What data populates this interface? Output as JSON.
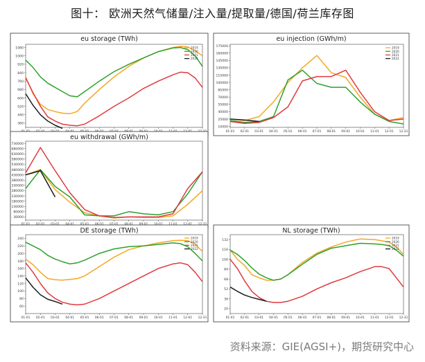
{
  "page": {
    "title": "图十：  欧洲天然气储量/注入量/提取量/德国/荷兰库存图",
    "source": "资料来源：GIE(AGSI+)，期货研究中心"
  },
  "colors": {
    "2019": "#f5a623",
    "2020": "#2ca02c",
    "2021": "#e0393e",
    "2022": "#1a1a1a"
  },
  "chart_data": [
    {
      "id": "eu-storage",
      "type": "line",
      "title": "eu storage (TWh)",
      "months": [
        "01-01",
        "02-01",
        "03-01",
        "04-01",
        "05-01",
        "06-01",
        "07-01",
        "08-01",
        "09-01",
        "10-01",
        "11-01",
        "12-01",
        "12-31"
      ],
      "yticks": [
        360,
        440,
        520,
        600,
        680,
        760,
        840,
        920,
        1000,
        1080
      ],
      "ylim": [
        320,
        1110
      ],
      "legend": "top-right",
      "series": [
        {
          "name": "2019",
          "x": [
            0,
            0.5,
            1,
            1.5,
            2,
            2.5,
            3,
            3.5,
            4,
            5,
            6,
            7,
            8,
            9,
            10,
            10.5,
            11,
            11.5,
            12
          ],
          "y": [
            800,
            640,
            540,
            490,
            470,
            455,
            450,
            470,
            550,
            680,
            800,
            900,
            980,
            1040,
            1080,
            1090,
            1085,
            1050,
            1000
          ]
        },
        {
          "name": "2020",
          "x": [
            0,
            0.5,
            1,
            1.5,
            2,
            2.5,
            3,
            3.5,
            4,
            5,
            6,
            7,
            8,
            9,
            10,
            10.5,
            11,
            11.5,
            12
          ],
          "y": [
            960,
            890,
            800,
            740,
            700,
            660,
            620,
            610,
            660,
            760,
            850,
            920,
            980,
            1040,
            1075,
            1080,
            1060,
            1000,
            900
          ]
        },
        {
          "name": "2021",
          "x": [
            0,
            0.5,
            1,
            1.5,
            2,
            2.5,
            3,
            3.5,
            4,
            5,
            6,
            7,
            8,
            9,
            10,
            10.5,
            11,
            11.5,
            12
          ],
          "y": [
            790,
            650,
            520,
            420,
            380,
            350,
            340,
            335,
            350,
            430,
            520,
            600,
            690,
            760,
            820,
            845,
            840,
            790,
            700
          ]
        },
        {
          "name": "2022",
          "x": [
            0,
            0.5,
            1,
            1.5,
            2,
            2.5
          ],
          "y": [
            640,
            530,
            440,
            380,
            340,
            310
          ]
        }
      ]
    },
    {
      "id": "eu-injection",
      "type": "line",
      "title": "eu injection (GWh/m)",
      "months": [
        "01-01",
        "02-01",
        "03-01",
        "04-01",
        "05-01",
        "06-01",
        "07-01",
        "08-01",
        "09-01",
        "10-01",
        "11-01",
        "12-01",
        "12-31"
      ],
      "yticks": [
        10000,
        25000,
        40000,
        55000,
        70000,
        85000,
        100000,
        115000,
        130000,
        145000,
        160000,
        175000
      ],
      "ylim": [
        8000,
        178000
      ],
      "legend": "top-right",
      "series": [
        {
          "name": "2019",
          "x": [
            0,
            1,
            2,
            3,
            4,
            5,
            6,
            7,
            8,
            9,
            10,
            11,
            12
          ],
          "y": [
            25000,
            22000,
            30000,
            60000,
            100000,
            130000,
            155000,
            120000,
            110000,
            70000,
            35000,
            22000,
            28000
          ]
        },
        {
          "name": "2020",
          "x": [
            0,
            1,
            2,
            3,
            4,
            5,
            6,
            7,
            8,
            9,
            10,
            11,
            12
          ],
          "y": [
            22000,
            18000,
            20000,
            30000,
            105000,
            125000,
            98000,
            90000,
            90000,
            60000,
            35000,
            20000,
            15000
          ]
        },
        {
          "name": "2021",
          "x": [
            0,
            1,
            2,
            3,
            4,
            5,
            6,
            7,
            8,
            9,
            10,
            11,
            12
          ],
          "y": [
            20000,
            16000,
            18000,
            28000,
            50000,
            103000,
            112000,
            112000,
            125000,
            80000,
            40000,
            22000,
            25000
          ]
        },
        {
          "name": "2022",
          "x": [
            0,
            1,
            2
          ],
          "y": [
            25000,
            23000,
            20000
          ]
        }
      ]
    },
    {
      "id": "eu-withdrawal",
      "type": "line",
      "title": "eu withdrawal (GWh/m)",
      "months": [
        "01-01",
        "02-01",
        "03-01",
        "04-01",
        "05-01",
        "06-01",
        "07-01",
        "08-01",
        "09-01",
        "10-01",
        "11-01",
        "12-01",
        "12-31"
      ],
      "yticks": [
        30000,
        80000,
        130000,
        180000,
        230000,
        280000,
        330000,
        380000,
        430000,
        480000,
        530000,
        580000,
        630000,
        680000,
        730000
      ],
      "ylim": [
        0,
        750000
      ],
      "legend": "",
      "series": [
        {
          "name": "2019",
          "x": [
            0,
            1,
            2,
            3,
            4,
            5,
            6,
            7,
            8,
            9,
            10,
            11,
            12
          ],
          "y": [
            430000,
            480000,
            290000,
            170000,
            70000,
            40000,
            20000,
            30000,
            25000,
            25000,
            40000,
            150000,
            280000
          ]
        },
        {
          "name": "2020",
          "x": [
            0,
            1,
            2,
            3,
            4,
            5,
            6,
            7,
            8,
            9,
            10,
            11,
            12
          ],
          "y": [
            300000,
            480000,
            320000,
            220000,
            50000,
            40000,
            40000,
            80000,
            60000,
            50000,
            80000,
            250000,
            460000
          ]
        },
        {
          "name": "2021",
          "x": [
            0,
            1,
            2,
            3,
            4,
            5,
            6,
            7,
            8,
            9,
            10,
            11,
            12
          ],
          "y": [
            450000,
            690000,
            470000,
            260000,
            100000,
            40000,
            25000,
            30000,
            30000,
            30000,
            60000,
            300000,
            460000
          ]
        },
        {
          "name": "2022",
          "x": [
            0,
            1,
            2
          ],
          "y": [
            430000,
            470000,
            220000
          ]
        }
      ]
    },
    {
      "id": "de-storage",
      "type": "line",
      "title": "DE storage (TWh)",
      "months": [
        "01-01",
        "02-01",
        "03-01",
        "04-01",
        "05-01",
        "06-01",
        "07-01",
        "08-01",
        "09-01",
        "10-01",
        "11-01",
        "12-01",
        "12-31"
      ],
      "yticks": [
        60,
        80,
        100,
        120,
        140,
        160,
        180,
        200,
        220,
        240
      ],
      "ylim": [
        40,
        250
      ],
      "legend": "top-right",
      "series": [
        {
          "name": "2019",
          "x": [
            0,
            0.5,
            1,
            1.5,
            2,
            2.5,
            3,
            3.5,
            4,
            5,
            6,
            7,
            8,
            9,
            10,
            10.5,
            11,
            11.5,
            12
          ],
          "y": [
            185,
            170,
            150,
            133,
            130,
            129,
            131,
            133,
            140,
            165,
            190,
            210,
            220,
            228,
            234,
            235,
            234,
            225,
            205
          ]
        },
        {
          "name": "2020",
          "x": [
            0,
            0.5,
            1,
            1.5,
            2,
            2.5,
            3,
            3.5,
            4,
            5,
            6,
            7,
            8,
            9,
            10,
            10.5,
            11,
            11.5,
            12
          ],
          "y": [
            230,
            220,
            210,
            195,
            185,
            178,
            172,
            175,
            182,
            200,
            212,
            218,
            220,
            224,
            228,
            226,
            218,
            200,
            180
          ]
        },
        {
          "name": "2021",
          "x": [
            0,
            0.5,
            1,
            1.5,
            2,
            2.5,
            3,
            3.5,
            4,
            5,
            6,
            7,
            8,
            9,
            10,
            10.5,
            11,
            11.5,
            12
          ],
          "y": [
            175,
            150,
            120,
            95,
            80,
            70,
            65,
            63,
            65,
            80,
            100,
            120,
            140,
            160,
            172,
            175,
            170,
            150,
            125
          ]
        },
        {
          "name": "2022",
          "x": [
            0,
            0.5,
            1,
            1.5,
            2,
            2.5
          ],
          "y": [
            135,
            110,
            90,
            78,
            72,
            65
          ]
        }
      ]
    },
    {
      "id": "nl-storage",
      "type": "line",
      "title": "NL storage (TWh)",
      "months": [
        "01-01",
        "02-01",
        "03-01",
        "04-01",
        "05-01",
        "06-01",
        "07-01",
        "08-01",
        "09-01",
        "10-01",
        "11-01",
        "12-01",
        "12-31"
      ],
      "yticks": [
        20,
        36,
        52,
        68,
        84,
        100,
        116,
        132
      ],
      "ylim": [
        12,
        140
      ],
      "legend": "top-right",
      "series": [
        {
          "name": "2019",
          "x": [
            0,
            0.5,
            1,
            1.5,
            2,
            2.5,
            3,
            3.5,
            4,
            5,
            6,
            7,
            8,
            9,
            10,
            10.5,
            11,
            11.5,
            12
          ],
          "y": [
            115,
            100,
            90,
            75,
            70,
            66,
            66,
            68,
            75,
            95,
            110,
            120,
            128,
            133,
            132,
            130,
            128,
            120,
            108
          ]
        },
        {
          "name": "2020",
          "x": [
            0,
            0.5,
            1,
            1.5,
            2,
            2.5,
            3,
            3.5,
            4,
            5,
            6,
            7,
            8,
            9,
            10,
            10.5,
            11,
            11.5,
            12
          ],
          "y": [
            115,
            108,
            98,
            86,
            76,
            70,
            66,
            68,
            75,
            92,
            108,
            118,
            122,
            126,
            125,
            124,
            122,
            115,
            105
          ]
        },
        {
          "name": "2021",
          "x": [
            0,
            0.5,
            1,
            1.5,
            2,
            2.5,
            3,
            3.5,
            4,
            5,
            6,
            7,
            8,
            9,
            10,
            10.5,
            11,
            11.5,
            12
          ],
          "y": [
            100,
            85,
            65,
            48,
            38,
            32,
            30,
            30,
            32,
            40,
            52,
            62,
            70,
            80,
            88,
            88,
            85,
            70,
            55
          ]
        },
        {
          "name": "2022",
          "x": [
            0,
            0.5,
            1,
            1.5,
            2,
            2.5
          ],
          "y": [
            55,
            48,
            42,
            38,
            35,
            32
          ]
        }
      ]
    }
  ]
}
